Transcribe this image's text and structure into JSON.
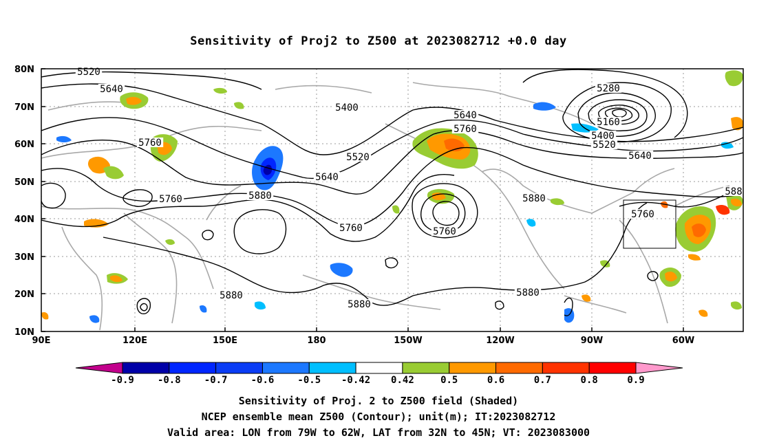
{
  "title": "Sensitivity of Proj2 to Z500 at 2023082712 +0.0 day",
  "lat_labels": [
    "80N",
    "70N",
    "60N",
    "50N",
    "40N",
    "30N",
    "20N",
    "10N"
  ],
  "lon_labels": [
    "90E",
    "120E",
    "150E",
    "180",
    "150W",
    "120W",
    "90W",
    "60W"
  ],
  "contour_labels": [
    {
      "text": "5520",
      "role": "height"
    },
    {
      "text": "5640",
      "role": "height"
    },
    {
      "text": "5760",
      "role": "height"
    },
    {
      "text": "5400",
      "role": "height"
    },
    {
      "text": "5520",
      "role": "height"
    },
    {
      "text": "5640",
      "role": "height"
    },
    {
      "text": "5760",
      "role": "height"
    },
    {
      "text": "5880",
      "role": "height"
    },
    {
      "text": "5640",
      "role": "height"
    },
    {
      "text": "5760",
      "role": "height"
    },
    {
      "text": "5280",
      "role": "height"
    },
    {
      "text": "5160",
      "role": "height"
    },
    {
      "text": "5400",
      "role": "height"
    },
    {
      "text": "5520",
      "role": "height"
    },
    {
      "text": "5640",
      "role": "height"
    },
    {
      "text": "5880",
      "role": "height"
    },
    {
      "text": "5760",
      "role": "height"
    },
    {
      "text": "5760",
      "role": "height"
    },
    {
      "text": "5760",
      "role": "height"
    },
    {
      "text": "5880",
      "role": "height"
    },
    {
      "text": "5880",
      "role": "height"
    },
    {
      "text": "5880",
      "role": "height"
    },
    {
      "text": "588",
      "role": "height"
    }
  ],
  "colorbar": {
    "labels": [
      "-0.9",
      "-0.8",
      "-0.7",
      "-0.6",
      "-0.5",
      "-0.42",
      "0.42",
      "0.5",
      "0.6",
      "0.7",
      "0.8",
      "0.9"
    ],
    "colors": [
      "#c2008c",
      "#0000a8",
      "#0026ff",
      "#0a3cf5",
      "#1c78ff",
      "#00bfff",
      "#ffffff",
      "#99cc33",
      "#ff9900",
      "#ff6a00",
      "#ff3300",
      "#ff0000",
      "#ff99cc"
    ]
  },
  "captions": [
    "Sensitivity of Proj. 2 to Z500 field (Shaded)",
    "NCEP ensemble mean Z500 (Contour); unit(m); IT:2023082712",
    "Valid area: LON from 79W to 62W, LAT from 32N to 45N; VT: 2023083000"
  ]
}
